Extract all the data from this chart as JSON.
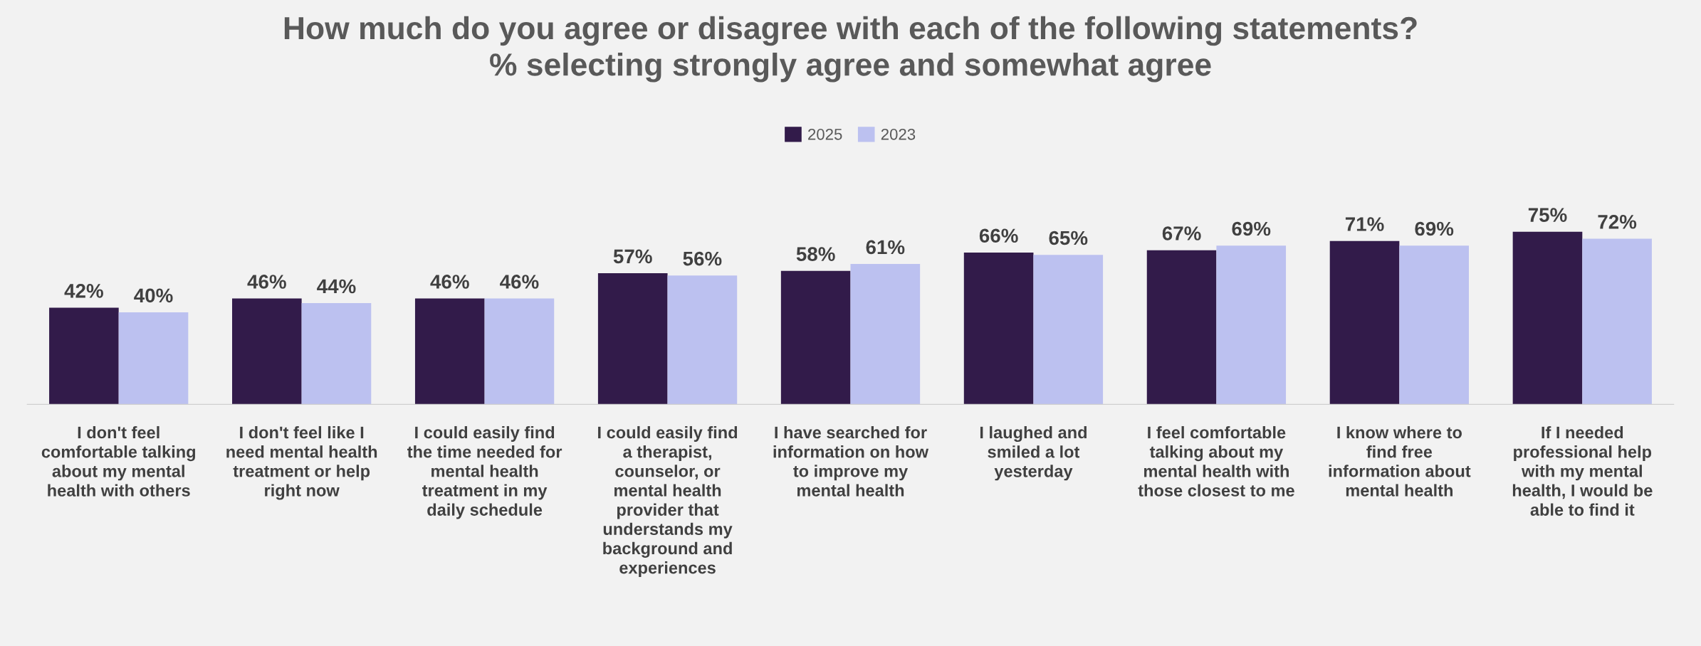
{
  "chart_data": {
    "type": "bar",
    "title": "How much do you agree or disagree with each of the following statements?\n% selecting strongly agree and somewhat agree",
    "categories": [
      "I don't feel comfortable talking about my mental health with others",
      "I don't feel like I need mental health treatment or help right now",
      "I could easily find the time needed for mental health treatment in my daily schedule",
      "I could easily find a therapist, counselor, or mental health provider that understands my background and experiences",
      "I have searched for information on how to improve my mental health",
      "I laughed and smiled a lot yesterday",
      "I feel comfortable talking about my mental health with those closest to me",
      "I know where to find free information about mental health",
      "If I needed professional help with my mental health, I would be able to find it"
    ],
    "series": [
      {
        "name": "2025",
        "color": "#321b4a",
        "values": [
          42,
          46,
          46,
          57,
          58,
          66,
          67,
          71,
          75
        ],
        "value_labels": [
          "42%",
          "46%",
          "46%",
          "57%",
          "58%",
          "66%",
          "67%",
          "71%",
          "75%"
        ]
      },
      {
        "name": "2023",
        "color": "#bcc1f0",
        "values": [
          40,
          44,
          46,
          56,
          61,
          65,
          69,
          69,
          72
        ],
        "value_labels": [
          "40%",
          "44%",
          "46%",
          "56%",
          "61%",
          "65%",
          "69%",
          "69%",
          "72%"
        ]
      }
    ],
    "legend": "top",
    "grid": false
  }
}
